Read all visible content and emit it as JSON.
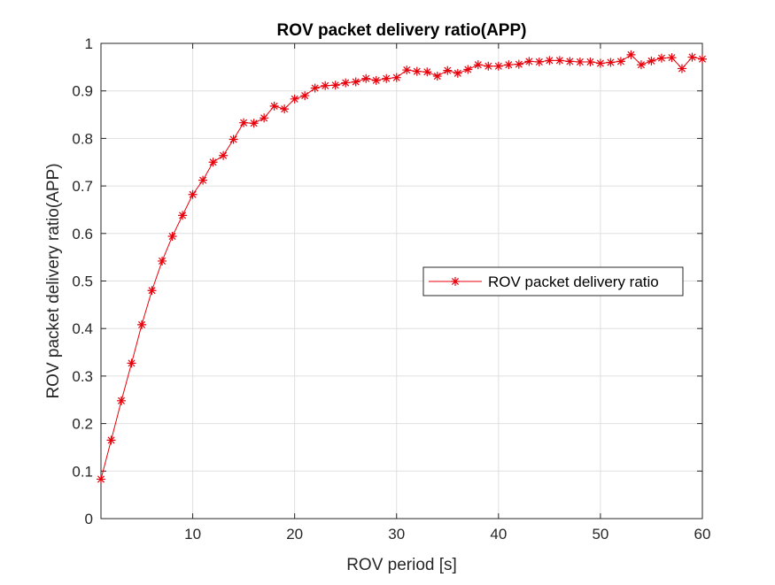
{
  "chart_data": {
    "type": "line",
    "title": "ROV packet delivery ratio(APP)",
    "xlabel": "ROV period [s]",
    "ylabel": "ROV packet delivery ratio(APP)",
    "xlim": [
      1,
      60
    ],
    "ylim": [
      0,
      1
    ],
    "xticks": [
      10,
      20,
      30,
      40,
      50,
      60
    ],
    "yticks": [
      0,
      0.1,
      0.2,
      0.3,
      0.4,
      0.5,
      0.6,
      0.7,
      0.8,
      0.9,
      1
    ],
    "xtick_labels": [
      "10",
      "20",
      "30",
      "40",
      "50",
      "60"
    ],
    "ytick_labels": [
      "0",
      "0.1",
      "0.2",
      "0.3",
      "0.4",
      "0.5",
      "0.6",
      "0.7",
      "0.8",
      "0.9",
      "1"
    ],
    "grid": true,
    "legend_position": "right",
    "series": [
      {
        "name": "ROV packet delivery ratio",
        "color": "#e8000b",
        "marker": "asterisk",
        "x": [
          1,
          2,
          3,
          4,
          5,
          6,
          7,
          8,
          9,
          10,
          11,
          12,
          13,
          14,
          15,
          16,
          17,
          18,
          19,
          20,
          21,
          22,
          23,
          24,
          25,
          26,
          27,
          28,
          29,
          30,
          31,
          32,
          33,
          34,
          35,
          36,
          37,
          38,
          39,
          40,
          41,
          42,
          43,
          44,
          45,
          46,
          47,
          48,
          49,
          50,
          51,
          52,
          53,
          54,
          55,
          56,
          57,
          58,
          59,
          60
        ],
        "values": [
          0.083,
          0.165,
          0.248,
          0.327,
          0.408,
          0.48,
          0.542,
          0.594,
          0.638,
          0.682,
          0.712,
          0.75,
          0.764,
          0.798,
          0.833,
          0.832,
          0.843,
          0.868,
          0.862,
          0.883,
          0.89,
          0.906,
          0.911,
          0.912,
          0.917,
          0.919,
          0.926,
          0.922,
          0.926,
          0.928,
          0.944,
          0.941,
          0.94,
          0.931,
          0.943,
          0.937,
          0.945,
          0.955,
          0.952,
          0.952,
          0.955,
          0.956,
          0.962,
          0.961,
          0.964,
          0.964,
          0.962,
          0.961,
          0.961,
          0.958,
          0.96,
          0.962,
          0.976,
          0.955,
          0.963,
          0.969,
          0.97,
          0.947,
          0.971,
          0.967
        ]
      }
    ]
  }
}
